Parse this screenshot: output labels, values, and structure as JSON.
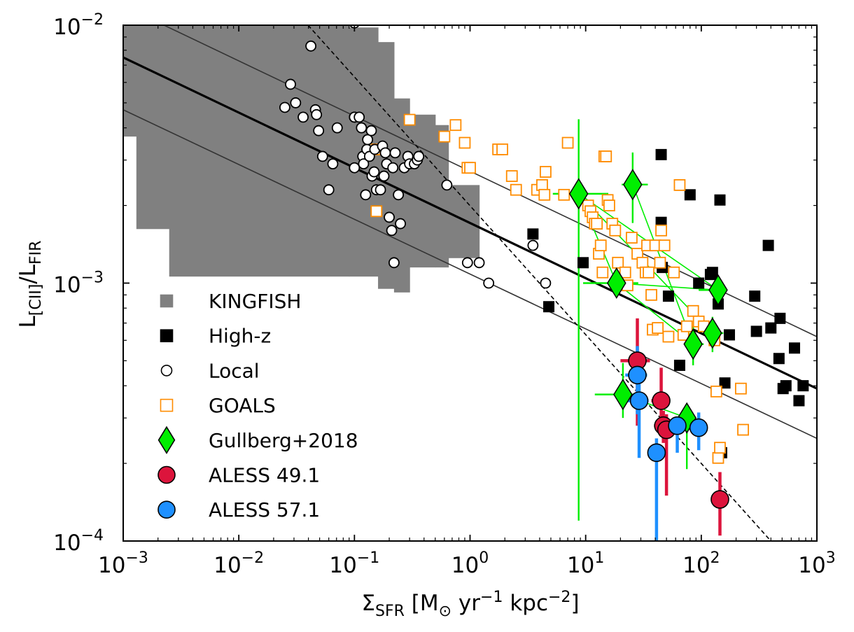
{
  "chart_data": {
    "type": "scatter",
    "xscale": "log",
    "yscale": "log",
    "xlim": [
      0.001,
      1000
    ],
    "ylim": [
      0.0001,
      0.01
    ],
    "xlabel": "Σ_SFR [M⊙ yr⁻¹ kpc⁻²]",
    "xlabel_parts": {
      "sigma": "Σ",
      "sub": "SFR",
      "rest_a": " [M",
      "sun": "⊙",
      "rest_b": " yr",
      "exp1": "−1",
      "rest_c": " kpc",
      "exp2": "−2",
      "close": "]"
    },
    "ylabel": "L[CII]/LFIR",
    "ylabel_parts": {
      "l1": "L",
      "sub1": "[CII]",
      "slash": "/L",
      "sub2": "FIR"
    },
    "xticks": [
      {
        "value": 0.001,
        "base": "10",
        "exp": "−3"
      },
      {
        "value": 0.01,
        "base": "10",
        "exp": "−2"
      },
      {
        "value": 0.1,
        "base": "10",
        "exp": "−1"
      },
      {
        "value": 1,
        "base": "10",
        "exp": "0"
      },
      {
        "value": 10,
        "base": "10",
        "exp": "1"
      },
      {
        "value": 100,
        "base": "10",
        "exp": "2"
      },
      {
        "value": 1000,
        "base": "10",
        "exp": "3"
      }
    ],
    "yticks": [
      {
        "value": 0.0001,
        "base": "10",
        "exp": "−4"
      },
      {
        "value": 0.001,
        "base": "10",
        "exp": "−3"
      },
      {
        "value": 0.01,
        "base": "10",
        "exp": "−2"
      }
    ],
    "lines": [
      {
        "name": "best-fit",
        "style": "solid",
        "color": "#000000",
        "width": "thick",
        "x": [
          0.001,
          1000
        ],
        "y": [
          0.0075,
          0.00039
        ]
      },
      {
        "name": "upper-scatter",
        "style": "solid",
        "color": "#333333",
        "width": "thin",
        "x": [
          0.001,
          1000
        ],
        "y": [
          0.0119,
          0.00062
        ]
      },
      {
        "name": "lower-scatter",
        "style": "solid",
        "color": "#333333",
        "width": "thin",
        "x": [
          0.001,
          1000
        ],
        "y": [
          0.0047,
          0.00025
        ]
      },
      {
        "name": "steep-relation",
        "style": "dashed",
        "color": "#000000",
        "width": "thin",
        "x": [
          0.03,
          400
        ],
        "y": [
          0.0115,
          0.0001
        ]
      }
    ],
    "kingfish_region": {
      "color": "#808080",
      "steps": [
        {
          "x0": 0.001,
          "x1": 0.0013,
          "ylo": 0.0037,
          "yhi": 0.01
        },
        {
          "x0": 0.0013,
          "x1": 0.0025,
          "ylo": 0.00162,
          "yhi": 0.01
        },
        {
          "x0": 0.0025,
          "x1": 0.09,
          "ylo": 0.00106,
          "yhi": 0.01
        },
        {
          "x0": 0.09,
          "x1": 0.16,
          "ylo": 0.00106,
          "yhi": 0.0098
        },
        {
          "x0": 0.16,
          "x1": 0.22,
          "ylo": 0.00095,
          "yhi": 0.0086
        },
        {
          "x0": 0.22,
          "x1": 0.3,
          "ylo": 0.00092,
          "yhi": 0.0052
        },
        {
          "x0": 0.3,
          "x1": 0.5,
          "ylo": 0.00115,
          "yhi": 0.0045
        },
        {
          "x0": 0.5,
          "x1": 0.65,
          "ylo": 0.00115,
          "yhi": 0.0041
        },
        {
          "x0": 0.65,
          "x1": 1.2,
          "ylo": 0.00125,
          "yhi": 0.0024
        }
      ]
    },
    "series": [
      {
        "name": "High-z",
        "marker": "square",
        "fill": "#000000",
        "edge": "#000000",
        "x": [
          3.5,
          4.8,
          9.5,
          45,
          45,
          46,
          52,
          65,
          80,
          95,
          120,
          125,
          140,
          145,
          150,
          160,
          175,
          290,
          300,
          380,
          400,
          470,
          480,
          510,
          540,
          640,
          700,
          760
        ],
        "y": [
          0.00155,
          0.00081,
          0.0012,
          0.00315,
          0.00172,
          0.00115,
          0.00089,
          0.00048,
          0.0022,
          0.001,
          0.00108,
          0.0011,
          0.00083,
          0.0021,
          0.00022,
          0.00041,
          0.00063,
          0.00089,
          0.00065,
          0.0014,
          0.00067,
          0.00051,
          0.00073,
          0.00039,
          0.0004,
          0.00056,
          0.00035,
          0.0004
        ]
      },
      {
        "name": "Local",
        "marker": "circle",
        "fill": "#ffffff",
        "edge": "#000000",
        "x": [
          0.025,
          0.028,
          0.031,
          0.036,
          0.042,
          0.046,
          0.047,
          0.049,
          0.053,
          0.06,
          0.065,
          0.071,
          0.1,
          0.1,
          0.1,
          0.11,
          0.115,
          0.118,
          0.12,
          0.125,
          0.128,
          0.13,
          0.135,
          0.14,
          0.142,
          0.148,
          0.15,
          0.155,
          0.168,
          0.175,
          0.18,
          0.185,
          0.19,
          0.2,
          0.21,
          0.215,
          0.22,
          0.225,
          0.24,
          0.25,
          0.27,
          0.29,
          0.3,
          0.33,
          0.35,
          0.36,
          0.63,
          0.95,
          1.2,
          1.45,
          3.5,
          4.5,
          0.1
        ],
        "y": [
          0.0048,
          0.0059,
          0.005,
          0.0044,
          0.0083,
          0.0047,
          0.0045,
          0.0039,
          0.0031,
          0.0023,
          0.0029,
          0.004,
          0.0044,
          0.0028,
          0.0044,
          0.0044,
          0.004,
          0.0031,
          0.0029,
          0.0022,
          0.0033,
          0.0036,
          0.0031,
          0.0039,
          0.0026,
          0.0027,
          0.0033,
          0.0023,
          0.0023,
          0.0034,
          0.0026,
          0.0032,
          0.0029,
          0.0018,
          0.0016,
          0.0028,
          0.0012,
          0.0032,
          0.0022,
          0.0017,
          0.0028,
          0.0031,
          0.0029,
          0.0029,
          0.003,
          0.0031,
          0.0024,
          0.0012,
          0.0012,
          0.001,
          0.0014,
          0.001,
          0.0102
        ]
      },
      {
        "name": "GOALS",
        "marker": "square",
        "fill": "#ffffff",
        "edge": "#ff8c00",
        "x": [
          0.15,
          0.155,
          0.3,
          0.6,
          0.75,
          0.9,
          0.95,
          1.0,
          1.75,
          1.9,
          2.3,
          2.5,
          3.8,
          4.2,
          4.4,
          4.5,
          6.5,
          7.0,
          10.5,
          11,
          11.5,
          12,
          12.5,
          13,
          13.5,
          14,
          14.5,
          15,
          15.5,
          16,
          17,
          18,
          19,
          22,
          23,
          25,
          28,
          31,
          33,
          34,
          35,
          37,
          38,
          40,
          42,
          44,
          45,
          48,
          52,
          58,
          65,
          70,
          75,
          85,
          95,
          105,
          130,
          135,
          140,
          145,
          220,
          230
        ],
        "y": [
          0.0033,
          0.0019,
          0.0043,
          0.0037,
          0.0041,
          0.0035,
          0.0028,
          0.0028,
          0.0033,
          0.0033,
          0.0026,
          0.0023,
          0.0023,
          0.0024,
          0.0022,
          0.0027,
          0.0022,
          0.0035,
          0.002,
          0.0019,
          0.0018,
          0.0017,
          0.0017,
          0.0013,
          0.0014,
          0.0011,
          0.0031,
          0.0031,
          0.0021,
          0.002,
          0.0017,
          0.0016,
          0.0012,
          0.0011,
          0.00098,
          0.0015,
          0.0013,
          0.0012,
          0.0011,
          0.0014,
          0.0011,
          0.0009,
          0.00066,
          0.0014,
          0.00067,
          0.0012,
          0.0016,
          0.0014,
          0.00062,
          0.0011,
          0.0024,
          0.00063,
          0.00068,
          0.00078,
          0.00071,
          0.00068,
          0.0006,
          0.00038,
          0.00021,
          0.00023,
          0.00039,
          0.00027
        ]
      },
      {
        "name": "Gullberg+2018",
        "marker": "diamond",
        "fill": "#00ee00",
        "edge": "#000000",
        "errcolor": "#00ee00",
        "x": [
          8.7,
          18.5,
          25.5,
          85,
          125,
          140,
          21,
          75
        ],
        "y": [
          0.00222,
          0.001,
          0.00241,
          0.00058,
          0.00064,
          0.00094,
          0.00037,
          0.0003
        ],
        "xerr_lo": [
          3.5,
          9,
          5,
          10,
          15,
          45,
          9,
          7
        ],
        "xerr_hi": [
          7,
          10,
          9,
          20,
          30,
          25,
          10,
          10
        ],
        "yerr_lo": [
          0.0021,
          0.0001,
          0.0007,
          0.0001,
          0.0001,
          0.0001,
          7e-05,
          0.00011
        ],
        "yerr_hi": [
          0.0021,
          5e-05,
          0.0008,
          0.0001,
          0.0001,
          5e-05,
          0.00012,
          2e-05
        ],
        "connectors": [
          [
            0,
            1
          ],
          [
            0,
            4
          ],
          [
            0,
            5
          ],
          [
            1,
            3
          ],
          [
            2,
            3
          ],
          [
            1,
            5
          ],
          [
            6,
            7
          ]
        ]
      },
      {
        "name": "ALESS 49.1",
        "marker": "circle",
        "fill": "#dc143c",
        "edge": "#000000",
        "errcolor": "#dc143c",
        "x": [
          28,
          45,
          47,
          50,
          145
        ],
        "y": [
          0.0005,
          0.00035,
          0.00028,
          0.00027,
          0.000145
        ],
        "xerr_lo": [
          8,
          8,
          8,
          8,
          8
        ],
        "xerr_hi": [
          8,
          8,
          8,
          8,
          8
        ],
        "yerr_lo": [
          0.00022,
          7e-05,
          4e-05,
          0.00012,
          4e-05
        ],
        "yerr_hi": [
          0.00023,
          0.00012,
          4e-05,
          4e-05,
          4e-05
        ]
      },
      {
        "name": "ALESS 57.1",
        "marker": "circle",
        "fill": "#1e90ff",
        "edge": "#000000",
        "errcolor": "#1e90ff",
        "x": [
          28,
          29,
          41,
          62,
          95
        ],
        "y": [
          0.00044,
          0.00035,
          0.00022,
          0.00028,
          0.000275
        ],
        "xerr_lo": [
          6,
          6,
          6,
          6,
          6
        ],
        "xerr_hi": [
          6,
          6,
          6,
          6,
          6
        ],
        "yerr_lo": [
          0.00013,
          0.00014,
          0.00013,
          6e-05,
          5e-05
        ],
        "yerr_hi": [
          0.00013,
          0.00014,
          3e-05,
          2e-05,
          4e-05
        ]
      }
    ],
    "legend": {
      "position": "lower-left",
      "entries": [
        {
          "label": "KINGFISH",
          "marker": "square",
          "fill": "#808080",
          "edge": "#808080"
        },
        {
          "label": "High-z",
          "marker": "square",
          "fill": "#000000",
          "edge": "#000000"
        },
        {
          "label": "Local",
          "marker": "circle",
          "fill": "#ffffff",
          "edge": "#000000"
        },
        {
          "label": "GOALS",
          "marker": "square",
          "fill": "#ffffff",
          "edge": "#ff8c00"
        },
        {
          "label": "Gullberg+2018",
          "marker": "diamond",
          "fill": "#00ee00",
          "edge": "#000000"
        },
        {
          "label": "ALESS 49.1",
          "marker": "circle",
          "fill": "#dc143c",
          "edge": "#000000"
        },
        {
          "label": "ALESS 57.1",
          "marker": "circle",
          "fill": "#1e90ff",
          "edge": "#000000"
        }
      ]
    }
  }
}
